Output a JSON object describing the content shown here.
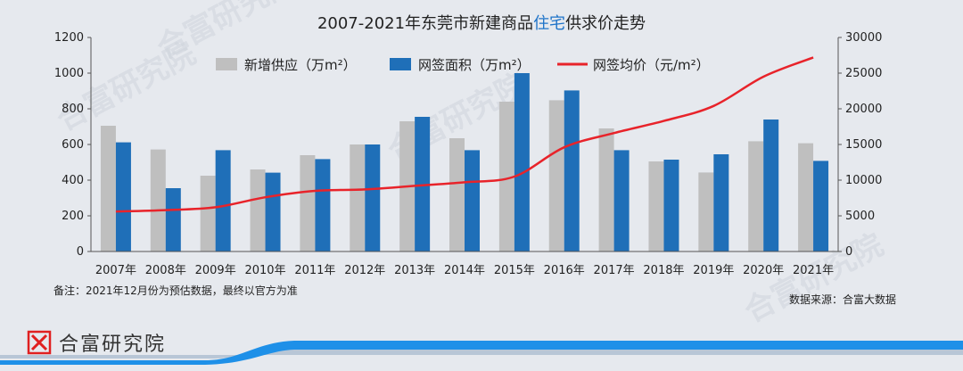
{
  "chart_data": {
    "type": "bar",
    "title_prefix": "2007-2021年东莞市新建商品",
    "title_highlight": "住宅",
    "title_suffix": "供求价走势",
    "highlight_color": "#1e73c8",
    "categories": [
      "2007年",
      "2008年",
      "2009年",
      "2010年",
      "2011年",
      "2012年",
      "2013年",
      "2014年",
      "2015年",
      "2016年",
      "2017年",
      "2018年",
      "2019年",
      "2020年",
      "2021年"
    ],
    "series": [
      {
        "name": "新增供应（万m²）",
        "kind": "bar",
        "axis": "left",
        "color": "#bfbfbf",
        "values": [
          705,
          572,
          425,
          460,
          540,
          600,
          730,
          635,
          840,
          848,
          690,
          505,
          443,
          618,
          607
        ]
      },
      {
        "name": "网签面积（万m²）",
        "kind": "bar",
        "axis": "left",
        "color": "#1f6fb8",
        "values": [
          612,
          355,
          568,
          442,
          518,
          600,
          755,
          568,
          1000,
          903,
          568,
          515,
          545,
          740,
          508
        ]
      },
      {
        "name": "网签均价（元/m²）",
        "kind": "line",
        "axis": "right",
        "color": "#e8232a",
        "values": [
          5600,
          5800,
          6200,
          7600,
          8500,
          8700,
          9200,
          9700,
          10500,
          14600,
          16600,
          18300,
          20400,
          24500,
          27200
        ]
      }
    ],
    "ylim_left": [
      0,
      1200
    ],
    "ylim_right": [
      0,
      30000
    ],
    "yticks_left": [
      "0",
      "200",
      "400",
      "600",
      "800",
      "1000",
      "1200"
    ],
    "yticks_right": [
      "0",
      "5000",
      "10000",
      "15000",
      "20000",
      "25000",
      "30000"
    ],
    "legend_position": "top",
    "grid": false
  },
  "footnote": "备注：2021年12月份为预估数据，最终以官方为准",
  "source": "数据来源：合富大数据",
  "brand": {
    "name": "合富研究院",
    "accent_color": "#1e90e8",
    "logo_color": "#e02020"
  },
  "watermark": "合富研究院"
}
